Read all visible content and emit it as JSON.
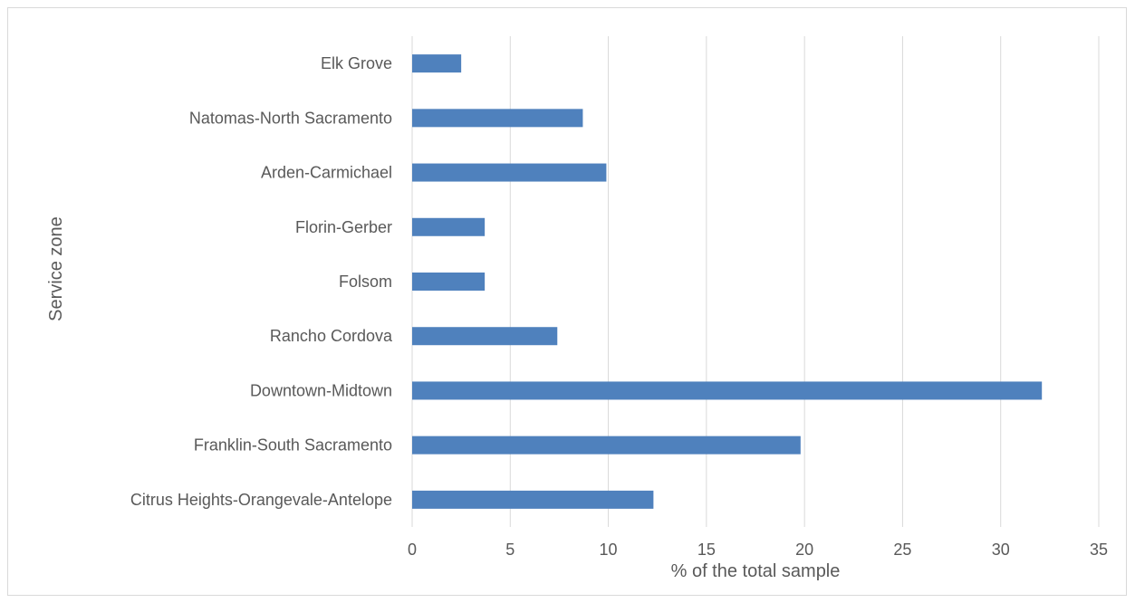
{
  "chart_data": {
    "type": "bar",
    "orientation": "horizontal",
    "categories": [
      "Elk Grove",
      "Natomas-North Sacramento",
      "Arden-Carmichael",
      "Florin-Gerber",
      "Folsom",
      "Rancho Cordova",
      "Downtown-Midtown",
      "Franklin-South Sacramento",
      "Citrus Heights-Orangevale-Antelope"
    ],
    "values": [
      2.5,
      8.7,
      9.9,
      3.7,
      3.7,
      7.4,
      32.1,
      19.8,
      12.3
    ],
    "title": "",
    "xlabel": "% of the total sample",
    "ylabel": "Service zone",
    "xlim": [
      0,
      35
    ],
    "xticks": [
      0,
      5,
      10,
      15,
      20,
      25,
      30,
      35
    ],
    "grid": true,
    "bar_color": "#4F81BD",
    "grid_color": "#d9d9d9"
  }
}
